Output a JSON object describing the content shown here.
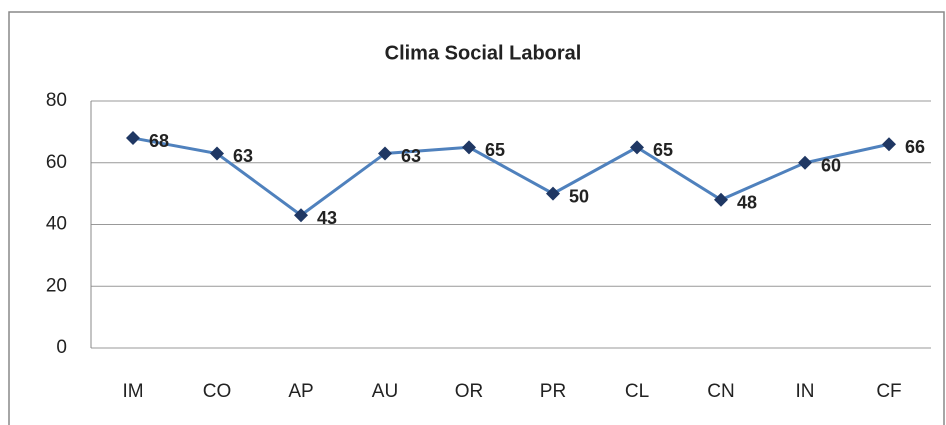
{
  "chart_data": {
    "type": "line",
    "title": "Clima Social Laboral",
    "categories": [
      "IM",
      "CO",
      "AP",
      "AU",
      "OR",
      "PR",
      "CL",
      "CN",
      "IN",
      "CF"
    ],
    "values": [
      68,
      63,
      43,
      63,
      65,
      50,
      65,
      48,
      60,
      66
    ],
    "color": "#4f81bd",
    "marker_color": "#1f3763",
    "ylim": [
      0,
      80
    ],
    "yticks": [
      0,
      20,
      40,
      60,
      80
    ],
    "grid": true
  }
}
